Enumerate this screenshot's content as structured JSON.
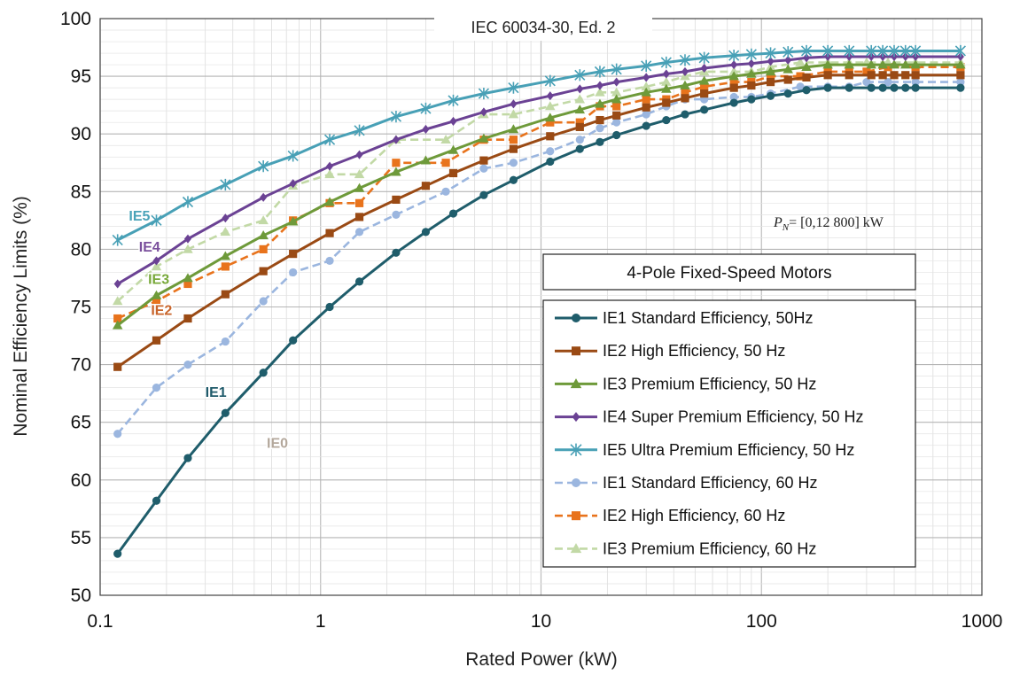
{
  "chart_data": {
    "type": "line",
    "title": "IEC 60034-30, Ed. 2",
    "xlabel": "Rated Power (kW)",
    "ylabel": "Nominal Efficiency Limits (%)",
    "xscale": "log",
    "xlim": [
      0.1,
      1000
    ],
    "ylim": [
      50,
      100
    ],
    "x_ticks": [
      "0.1",
      "1",
      "10",
      "100",
      "1000"
    ],
    "y_ticks": [
      "50",
      "55",
      "60",
      "65",
      "70",
      "75",
      "80",
      "85",
      "90",
      "95",
      "100"
    ],
    "grid": true,
    "annotation": {
      "symbol": "P",
      "subscript": "N",
      "text": "= [0,12  800] kW"
    },
    "legend": {
      "title": "4-Pole Fixed-Speed Motors",
      "placement": "lower-right"
    },
    "curve_labels": [
      {
        "text": "IE5",
        "x": 0.135,
        "y": 82.5,
        "color": "#4aa3b8"
      },
      {
        "text": "IE4",
        "x": 0.15,
        "y": 79.8,
        "color": "#7a4f9c"
      },
      {
        "text": "IE3",
        "x": 0.165,
        "y": 77.0,
        "color": "#78a83a"
      },
      {
        "text": "IE2",
        "x": 0.17,
        "y": 74.3,
        "color": "#c8642a"
      },
      {
        "text": "IE1",
        "x": 0.3,
        "y": 67.2,
        "color": "#1f5a6a"
      },
      {
        "text": "IE0",
        "x": 0.57,
        "y": 62.8,
        "color": "#b4a89c"
      }
    ],
    "series": [
      {
        "name": "IE1 Standard Efficiency, 50Hz",
        "color": "#1f5d6b",
        "dash": "solid",
        "marker": "circle",
        "x": [
          0.12,
          0.18,
          0.25,
          0.37,
          0.55,
          0.75,
          1.1,
          1.5,
          2.2,
          3,
          4,
          5.5,
          7.5,
          11,
          15,
          18.5,
          22,
          30,
          37,
          45,
          55,
          75,
          90,
          110,
          132,
          160,
          200,
          250,
          315,
          355,
          400,
          450,
          500,
          800
        ],
        "y": [
          53.6,
          58.2,
          61.9,
          65.8,
          69.3,
          72.1,
          75.0,
          77.2,
          79.7,
          81.5,
          83.1,
          84.7,
          86.0,
          87.6,
          88.7,
          89.3,
          89.9,
          90.7,
          91.2,
          91.7,
          92.1,
          92.7,
          93.0,
          93.3,
          93.5,
          93.8,
          94.0,
          94.0,
          94.0,
          94.0,
          94.0,
          94.0,
          94.0,
          94.0
        ]
      },
      {
        "name": "IE2 High Efficiency, 50 Hz",
        "color": "#9a4a14",
        "dash": "solid",
        "marker": "square",
        "x": [
          0.12,
          0.18,
          0.25,
          0.37,
          0.55,
          0.75,
          1.1,
          1.5,
          2.2,
          3,
          4,
          5.5,
          7.5,
          11,
          15,
          18.5,
          22,
          30,
          37,
          45,
          55,
          75,
          90,
          110,
          132,
          160,
          200,
          250,
          315,
          355,
          400,
          450,
          500,
          800
        ],
        "y": [
          69.8,
          72.1,
          74.0,
          76.1,
          78.1,
          79.6,
          81.4,
          82.8,
          84.3,
          85.5,
          86.6,
          87.7,
          88.7,
          89.8,
          90.6,
          91.2,
          91.6,
          92.3,
          92.7,
          93.1,
          93.5,
          94.0,
          94.2,
          94.5,
          94.7,
          94.9,
          95.1,
          95.1,
          95.1,
          95.1,
          95.1,
          95.1,
          95.1,
          95.1
        ]
      },
      {
        "name": "IE3 Premium Efficiency, 50 Hz",
        "color": "#6e9a3a",
        "dash": "solid",
        "marker": "triangle",
        "x": [
          0.12,
          0.18,
          0.25,
          0.37,
          0.55,
          0.75,
          1.1,
          1.5,
          2.2,
          3,
          4,
          5.5,
          7.5,
          11,
          15,
          18.5,
          22,
          30,
          37,
          45,
          55,
          75,
          90,
          110,
          132,
          160,
          200,
          250,
          315,
          355,
          400,
          450,
          500,
          800
        ],
        "y": [
          73.4,
          76.0,
          77.5,
          79.4,
          81.2,
          82.4,
          84.1,
          85.3,
          86.7,
          87.7,
          88.6,
          89.6,
          90.4,
          91.4,
          92.1,
          92.6,
          93.0,
          93.6,
          93.9,
          94.2,
          94.6,
          95.0,
          95.2,
          95.4,
          95.6,
          95.8,
          96.0,
          96.0,
          96.0,
          96.0,
          96.0,
          96.0,
          96.0,
          96.0
        ]
      },
      {
        "name": "IE4 Super Premium Efficiency, 50 Hz",
        "color": "#6b4294",
        "dash": "solid",
        "marker": "diamond",
        "x": [
          0.12,
          0.18,
          0.25,
          0.37,
          0.55,
          0.75,
          1.1,
          1.5,
          2.2,
          3,
          4,
          5.5,
          7.5,
          11,
          15,
          18.5,
          22,
          30,
          37,
          45,
          55,
          75,
          90,
          110,
          132,
          160,
          200,
          250,
          315,
          355,
          400,
          450,
          500,
          800
        ],
        "y": [
          77.0,
          79.0,
          80.9,
          82.7,
          84.5,
          85.7,
          87.2,
          88.2,
          89.5,
          90.4,
          91.1,
          91.9,
          92.6,
          93.3,
          93.9,
          94.2,
          94.5,
          94.9,
          95.2,
          95.4,
          95.7,
          96.0,
          96.1,
          96.3,
          96.4,
          96.6,
          96.7,
          96.7,
          96.7,
          96.7,
          96.7,
          96.7,
          96.7,
          96.7
        ]
      },
      {
        "name": "IE5 Ultra Premium Efficiency, 50 Hz",
        "color": "#48a0b6",
        "dash": "solid",
        "marker": "asterisk",
        "x": [
          0.12,
          0.18,
          0.25,
          0.37,
          0.55,
          0.75,
          1.1,
          1.5,
          2.2,
          3,
          4,
          5.5,
          7.5,
          11,
          15,
          18.5,
          22,
          30,
          37,
          45,
          55,
          75,
          90,
          110,
          132,
          160,
          200,
          250,
          315,
          355,
          400,
          450,
          500,
          800
        ],
        "y": [
          80.8,
          82.5,
          84.1,
          85.6,
          87.2,
          88.1,
          89.5,
          90.3,
          91.5,
          92.2,
          92.9,
          93.5,
          94.0,
          94.6,
          95.1,
          95.4,
          95.6,
          95.9,
          96.2,
          96.4,
          96.6,
          96.8,
          96.9,
          97.0,
          97.1,
          97.2,
          97.2,
          97.2,
          97.2,
          97.2,
          97.2,
          97.2,
          97.2,
          97.2
        ]
      },
      {
        "name": "IE1 Standard Efficiency, 60 Hz",
        "color": "#9bb6df",
        "dash": "dashed",
        "marker": "circle",
        "x": [
          0.12,
          0.18,
          0.25,
          0.37,
          0.55,
          0.75,
          1.1,
          1.5,
          2.2,
          3.7,
          5.5,
          7.5,
          11,
          15,
          18.5,
          22,
          30,
          37,
          45,
          55,
          75,
          90,
          110,
          150,
          200,
          250,
          300,
          375,
          500,
          800
        ],
        "y": [
          64.0,
          68.0,
          70.0,
          72.0,
          75.5,
          78.0,
          79.0,
          81.5,
          83.0,
          85.0,
          87.0,
          87.5,
          88.5,
          89.5,
          90.5,
          91.0,
          91.7,
          92.4,
          93.0,
          93.0,
          93.2,
          93.2,
          93.5,
          94.1,
          94.1,
          94.1,
          94.5,
          94.5,
          94.5,
          94.5
        ]
      },
      {
        "name": "IE2 High Efficiency, 60 Hz",
        "color": "#e8731c",
        "dash": "dashed",
        "marker": "square",
        "x": [
          0.12,
          0.18,
          0.25,
          0.37,
          0.55,
          0.75,
          1.1,
          1.5,
          2.2,
          3.7,
          5.5,
          7.5,
          11,
          15,
          18.5,
          22,
          30,
          37,
          45,
          55,
          75,
          90,
          110,
          150,
          200,
          250,
          300,
          375,
          500,
          800
        ],
        "y": [
          74.0,
          75.5,
          77.0,
          78.5,
          80.0,
          82.5,
          84.0,
          84.0,
          87.5,
          87.5,
          89.5,
          89.5,
          91.0,
          91.0,
          92.4,
          92.4,
          93.0,
          93.0,
          93.6,
          94.1,
          94.5,
          94.5,
          95.0,
          95.0,
          95.4,
          95.4,
          95.4,
          95.8,
          95.8,
          95.8
        ]
      },
      {
        "name": "IE3 Premium Efficiency, 60 Hz",
        "color": "#c2d9a6",
        "dash": "dashed",
        "marker": "triangle",
        "x": [
          0.12,
          0.18,
          0.25,
          0.37,
          0.55,
          0.75,
          1.1,
          1.5,
          2.2,
          3.7,
          5.5,
          7.5,
          11,
          15,
          18.5,
          22,
          30,
          37,
          45,
          55,
          75,
          90,
          110,
          150,
          200,
          250,
          300,
          375,
          500,
          800
        ],
        "y": [
          75.5,
          78.5,
          80.0,
          81.5,
          82.5,
          85.5,
          86.5,
          86.5,
          89.5,
          89.5,
          91.7,
          91.7,
          92.4,
          93.0,
          93.6,
          93.6,
          94.1,
          94.5,
          95.0,
          95.4,
          95.4,
          95.4,
          95.8,
          96.2,
          96.2,
          96.2,
          96.2,
          96.2,
          96.2,
          96.2
        ]
      }
    ]
  }
}
